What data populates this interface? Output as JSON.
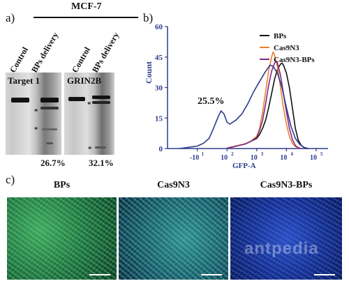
{
  "panel_a": {
    "letter": "a)",
    "cell_line": "MCF-7",
    "lane_labels": [
      "Control",
      "BPs delivery",
      "Control",
      "BPs delivery"
    ],
    "gel1_label": "Target 1",
    "gel2_label": "GRIN2B",
    "marker": "*",
    "pct1": "26.7%",
    "pct2": "32.1%"
  },
  "panel_b": {
    "letter": "b)",
    "chart_data": {
      "type": "line",
      "title": "",
      "xlabel": "GFP-A",
      "ylabel": "Count",
      "x_scale": "log",
      "x_ticks": [
        {
          "base": "-10",
          "exp": "1"
        },
        {
          "base": "10",
          "exp": "2"
        },
        {
          "base": "10",
          "exp": "3"
        },
        {
          "base": "10",
          "exp": "4"
        },
        {
          "base": "10",
          "exp": "5"
        }
      ],
      "y_ticks": [
        "0",
        "15",
        "30",
        "45",
        "60"
      ],
      "ylim": [
        0,
        60
      ],
      "annotation": "25.5%",
      "series": [
        {
          "name": "BPs",
          "color": "#111111",
          "points": [
            [
              0,
              0.2
            ],
            [
              0.2,
              0.8
            ],
            [
              0.4,
              1.5
            ],
            [
              0.6,
              2.2
            ],
            [
              0.8,
              3.5
            ],
            [
              1.0,
              5
            ],
            [
              1.1,
              7
            ],
            [
              1.2,
              10
            ],
            [
              1.3,
              14
            ],
            [
              1.4,
              20
            ],
            [
              1.5,
              27
            ],
            [
              1.6,
              34
            ],
            [
              1.7,
              39
            ],
            [
              1.8,
              41.5
            ],
            [
              1.85,
              42
            ],
            [
              1.9,
              41
            ],
            [
              2.0,
              37
            ],
            [
              2.1,
              30
            ],
            [
              2.2,
              20
            ],
            [
              2.3,
              10
            ],
            [
              2.4,
              4
            ],
            [
              2.5,
              1.5
            ],
            [
              2.6,
              0.4
            ],
            [
              2.7,
              0
            ]
          ]
        },
        {
          "name": "Cas9N3",
          "color": "#f07d2c",
          "points": [
            [
              0,
              0.2
            ],
            [
              0.2,
              0.9
            ],
            [
              0.4,
              1.6
            ],
            [
              0.6,
              2.3
            ],
            [
              0.8,
              3.6
            ],
            [
              1.0,
              6
            ],
            [
              1.1,
              10
            ],
            [
              1.2,
              18
            ],
            [
              1.3,
              28
            ],
            [
              1.4,
              38
            ],
            [
              1.5,
              45
            ],
            [
              1.55,
              47.5
            ],
            [
              1.6,
              46
            ],
            [
              1.7,
              40
            ],
            [
              1.8,
              30
            ],
            [
              1.9,
              20
            ],
            [
              2.0,
              12
            ],
            [
              2.1,
              6
            ],
            [
              2.2,
              2.5
            ],
            [
              2.3,
              1
            ],
            [
              2.4,
              0.3
            ],
            [
              2.5,
              0
            ]
          ]
        },
        {
          "name": "Cas9N3-BPs",
          "color": "#7b2a8c",
          "points": [
            [
              0,
              0.2
            ],
            [
              0.2,
              0.8
            ],
            [
              0.4,
              1.5
            ],
            [
              0.6,
              2.2
            ],
            [
              0.8,
              3.5
            ],
            [
              1.0,
              5.5
            ],
            [
              1.1,
              9
            ],
            [
              1.2,
              14
            ],
            [
              1.3,
              22
            ],
            [
              1.4,
              31
            ],
            [
              1.5,
              38
            ],
            [
              1.6,
              42
            ],
            [
              1.65,
              43
            ],
            [
              1.7,
              42
            ],
            [
              1.8,
              36
            ],
            [
              1.9,
              27
            ],
            [
              2.0,
              18
            ],
            [
              2.1,
              10
            ],
            [
              2.2,
              4.5
            ],
            [
              2.3,
              1.5
            ],
            [
              2.4,
              0.4
            ],
            [
              2.5,
              0
            ]
          ]
        },
        {
          "name": "",
          "color": "#2b3a8c",
          "points": [
            [
              -1.6,
              0
            ],
            [
              -1.3,
              0.6
            ],
            [
              -1.0,
              1.2
            ],
            [
              -0.8,
              2.5
            ],
            [
              -0.6,
              5
            ],
            [
              -0.45,
              10
            ],
            [
              -0.3,
              15.5
            ],
            [
              -0.2,
              18.5
            ],
            [
              -0.1,
              17
            ],
            [
              0.0,
              13
            ],
            [
              0.1,
              12
            ],
            [
              0.3,
              14
            ],
            [
              0.5,
              17
            ],
            [
              0.7,
              22
            ],
            [
              0.9,
              28
            ],
            [
              1.1,
              33
            ],
            [
              1.3,
              38
            ],
            [
              1.45,
              41
            ],
            [
              1.55,
              40.5
            ],
            [
              1.7,
              37
            ],
            [
              1.85,
              30
            ],
            [
              2.0,
              20
            ],
            [
              2.15,
              11
            ],
            [
              2.3,
              5
            ],
            [
              2.45,
              2
            ],
            [
              2.6,
              0.5
            ],
            [
              2.75,
              0
            ]
          ]
        }
      ]
    }
  },
  "panel_c": {
    "letter": "c)",
    "panels": [
      "BPs",
      "Cas9N3",
      "Cas9N3-BPs"
    ],
    "watermark": "antpedia"
  }
}
